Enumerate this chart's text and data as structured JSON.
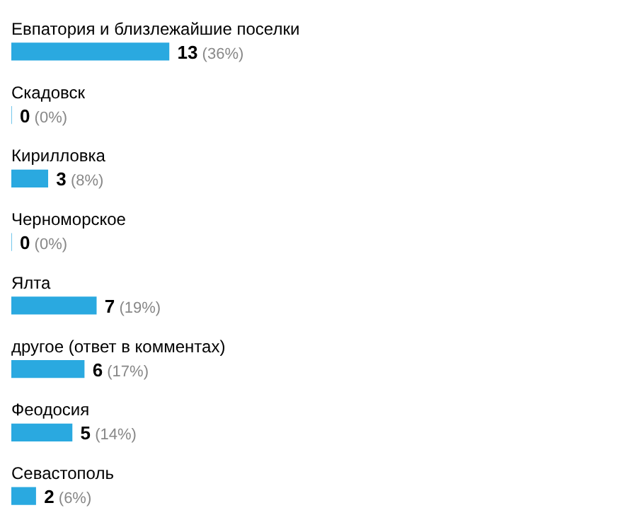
{
  "chart_data": {
    "type": "bar",
    "orientation": "horizontal",
    "categories": [
      "Евпатория и близлежайшие поселки",
      "Скадовск",
      "Кирилловка",
      "Черноморское",
      "Ялта",
      "другое (ответ в комментах)",
      "Феодосия",
      "Севастополь"
    ],
    "values": [
      13,
      0,
      3,
      0,
      7,
      6,
      5,
      2
    ],
    "value_labels": [
      "13 (36%)",
      "0 (0%)",
      "3 (8%)",
      "0 (0%)",
      "7 (19%)",
      "6 (17%)",
      "5 (14%)",
      "2 (6%)"
    ],
    "color": "#2aa9e0",
    "legend": false
  }
}
